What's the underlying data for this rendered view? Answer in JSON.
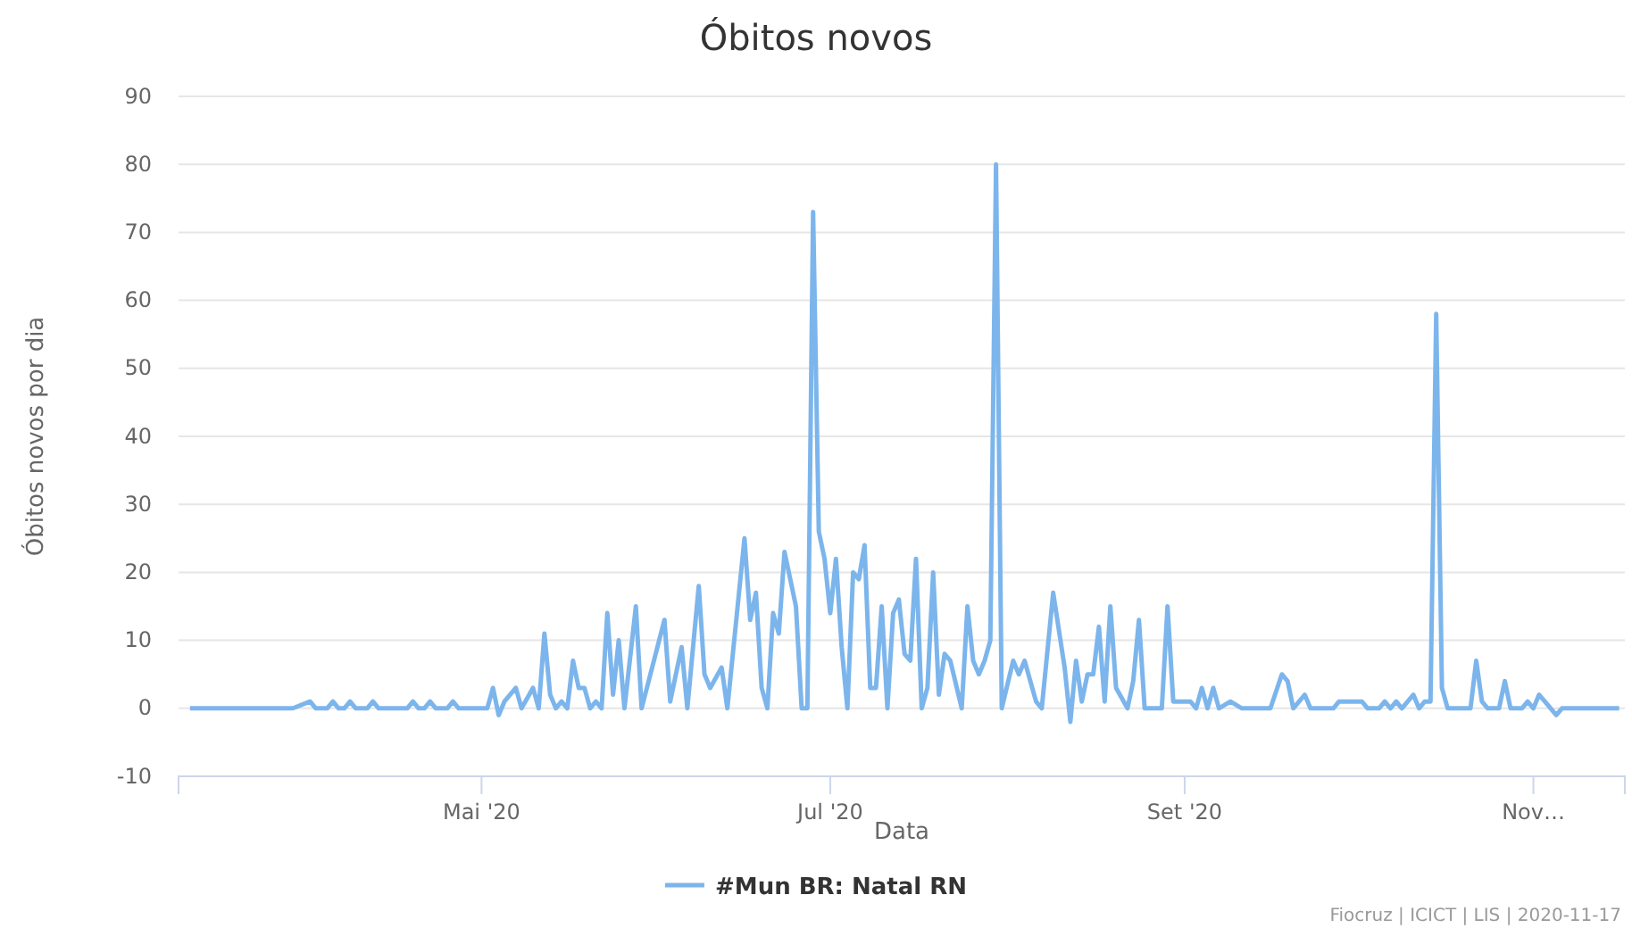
{
  "chart_data": {
    "type": "line",
    "title": "Óbitos novos",
    "xlabel": "Data",
    "ylabel": "Óbitos novos por dia",
    "x": [
      "2020-03-11",
      "2020-03-29",
      "2020-04-01",
      "2020-04-02",
      "2020-04-04",
      "2020-04-05",
      "2020-04-06",
      "2020-04-07",
      "2020-04-08",
      "2020-04-09",
      "2020-04-11",
      "2020-04-12",
      "2020-04-13",
      "2020-04-18",
      "2020-04-19",
      "2020-04-20",
      "2020-04-21",
      "2020-04-22",
      "2020-04-23",
      "2020-04-25",
      "2020-04-26",
      "2020-04-27",
      "2020-05-02",
      "2020-05-03",
      "2020-05-04",
      "2020-05-05",
      "2020-05-07",
      "2020-05-08",
      "2020-05-10",
      "2020-05-11",
      "2020-05-12",
      "2020-05-13",
      "2020-05-14",
      "2020-05-15",
      "2020-05-16",
      "2020-05-17",
      "2020-05-18",
      "2020-05-19",
      "2020-05-20",
      "2020-05-21",
      "2020-05-22",
      "2020-05-23",
      "2020-05-24",
      "2020-05-25",
      "2020-05-26",
      "2020-05-28",
      "2020-05-29",
      "2020-06-02",
      "2020-06-03",
      "2020-06-05",
      "2020-06-06",
      "2020-06-08",
      "2020-06-09",
      "2020-06-10",
      "2020-06-12",
      "2020-06-13",
      "2020-06-16",
      "2020-06-17",
      "2020-06-18",
      "2020-06-19",
      "2020-06-20",
      "2020-06-21",
      "2020-06-22",
      "2020-06-23",
      "2020-06-25",
      "2020-06-26",
      "2020-06-27",
      "2020-06-28",
      "2020-06-29",
      "2020-06-30",
      "2020-07-01",
      "2020-07-02",
      "2020-07-03",
      "2020-07-04",
      "2020-07-05",
      "2020-07-06",
      "2020-07-07",
      "2020-07-08",
      "2020-07-09",
      "2020-07-10",
      "2020-07-11",
      "2020-07-12",
      "2020-07-13",
      "2020-07-14",
      "2020-07-15",
      "2020-07-16",
      "2020-07-17",
      "2020-07-18",
      "2020-07-19",
      "2020-07-20",
      "2020-07-21",
      "2020-07-22",
      "2020-07-24",
      "2020-07-25",
      "2020-07-26",
      "2020-07-27",
      "2020-07-28",
      "2020-07-29",
      "2020-07-30",
      "2020-07-31",
      "2020-08-02",
      "2020-08-03",
      "2020-08-04",
      "2020-08-06",
      "2020-08-07",
      "2020-08-09",
      "2020-08-11",
      "2020-08-12",
      "2020-08-13",
      "2020-08-14",
      "2020-08-15",
      "2020-08-16",
      "2020-08-17",
      "2020-08-18",
      "2020-08-19",
      "2020-08-20",
      "2020-08-22",
      "2020-08-23",
      "2020-08-24",
      "2020-08-25",
      "2020-08-28",
      "2020-08-29",
      "2020-08-30",
      "2020-09-01",
      "2020-09-02",
      "2020-09-03",
      "2020-09-04",
      "2020-09-05",
      "2020-09-06",
      "2020-09-07",
      "2020-09-09",
      "2020-09-11",
      "2020-09-16",
      "2020-09-18",
      "2020-09-19",
      "2020-09-20",
      "2020-09-22",
      "2020-09-23",
      "2020-09-27",
      "2020-09-28",
      "2020-10-02",
      "2020-10-03",
      "2020-10-05",
      "2020-10-06",
      "2020-10-07",
      "2020-10-08",
      "2020-10-09",
      "2020-10-11",
      "2020-10-12",
      "2020-10-13",
      "2020-10-14",
      "2020-10-15",
      "2020-10-16",
      "2020-10-17",
      "2020-10-21",
      "2020-10-22",
      "2020-10-23",
      "2020-10-24",
      "2020-10-26",
      "2020-10-27",
      "2020-10-28",
      "2020-10-30",
      "2020-10-31",
      "2020-11-01",
      "2020-11-02",
      "2020-11-03",
      "2020-11-05",
      "2020-11-06",
      "2020-11-16"
    ],
    "series": [
      {
        "name": "#Mun BR: Natal RN",
        "color": "#7cb5ec",
        "values": [
          0,
          0,
          1,
          0,
          0,
          1,
          0,
          0,
          1,
          0,
          0,
          1,
          0,
          0,
          1,
          0,
          0,
          1,
          0,
          0,
          1,
          0,
          0,
          3,
          -1,
          1,
          3,
          0,
          3,
          0,
          11,
          2,
          0,
          1,
          0,
          7,
          3,
          3,
          0,
          1,
          0,
          14,
          2,
          10,
          0,
          15,
          0,
          13,
          1,
          9,
          0,
          18,
          5,
          3,
          6,
          0,
          25,
          13,
          17,
          3,
          0,
          14,
          11,
          23,
          15,
          0,
          0,
          73,
          26,
          22,
          14,
          22,
          9,
          0,
          20,
          19,
          24,
          3,
          3,
          15,
          0,
          14,
          16,
          8,
          7,
          22,
          0,
          3,
          20,
          2,
          8,
          7,
          0,
          15,
          7,
          5,
          7,
          10,
          80,
          0,
          7,
          5,
          7,
          1,
          0,
          17,
          6,
          -2,
          7,
          1,
          5,
          5,
          12,
          1,
          15,
          3,
          0,
          4,
          13,
          0,
          0,
          15,
          1,
          1,
          1,
          0,
          3,
          0,
          3,
          0,
          1,
          0,
          0,
          5,
          4,
          0,
          2,
          0,
          0,
          1,
          1,
          0,
          0,
          1,
          0,
          1,
          0,
          2,
          0,
          1,
          1,
          58,
          3,
          0,
          0,
          7,
          1,
          0,
          0,
          4,
          0,
          0,
          1,
          0,
          2,
          1,
          -1,
          0,
          0
        ]
      }
    ],
    "xlim": [
      "2020-03-09",
      "2020-11-17"
    ],
    "xticks": [
      {
        "value": "2020-05-01",
        "label": "Mai '20"
      },
      {
        "value": "2020-07-01",
        "label": "Jul '20"
      },
      {
        "value": "2020-09-01",
        "label": "Set '20"
      },
      {
        "value": "2020-11-01",
        "label": "Nov…"
      }
    ],
    "ylim": [
      -10,
      90
    ],
    "yticks": [
      -10,
      0,
      10,
      20,
      30,
      40,
      50,
      60,
      70,
      80,
      90
    ],
    "grid": "y",
    "legend": "bottom",
    "marker": "none",
    "line_style": "solid",
    "annotations": [
      "Fiocruz | ICICT | LIS | 2020-11-17"
    ]
  }
}
